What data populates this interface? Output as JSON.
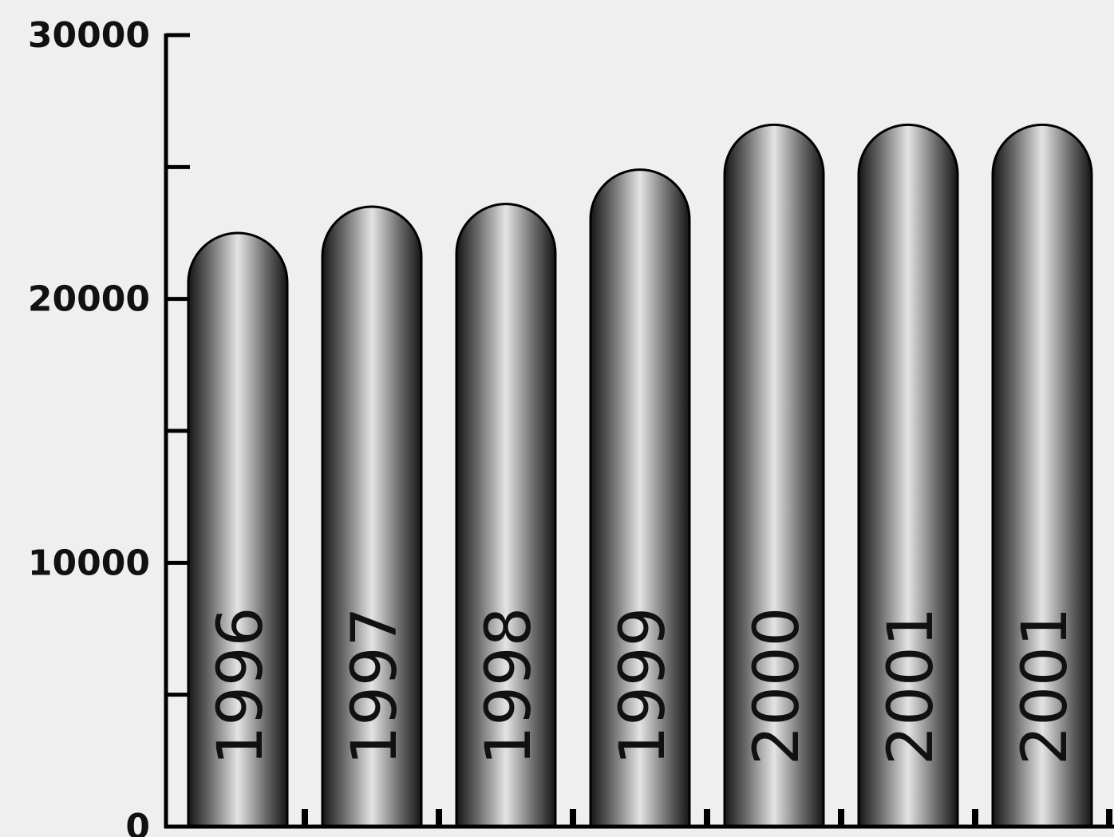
{
  "chart_data": {
    "type": "bar",
    "categories": [
      "1996",
      "1997",
      "1998",
      "1999",
      "2000",
      "2001",
      "2001"
    ],
    "values": [
      22500,
      23500,
      23600,
      24900,
      26600,
      26600,
      26600
    ],
    "yticks": [
      "0",
      "10000",
      "20000",
      "30000"
    ],
    "ylim": [
      0,
      30000
    ],
    "title": "",
    "xlabel": "",
    "ylabel": "",
    "grid": false,
    "colors": {
      "bar_dark": "#151515",
      "bar_light": "#e4e4e4",
      "axis": "#000000",
      "background": "#efefef"
    }
  }
}
